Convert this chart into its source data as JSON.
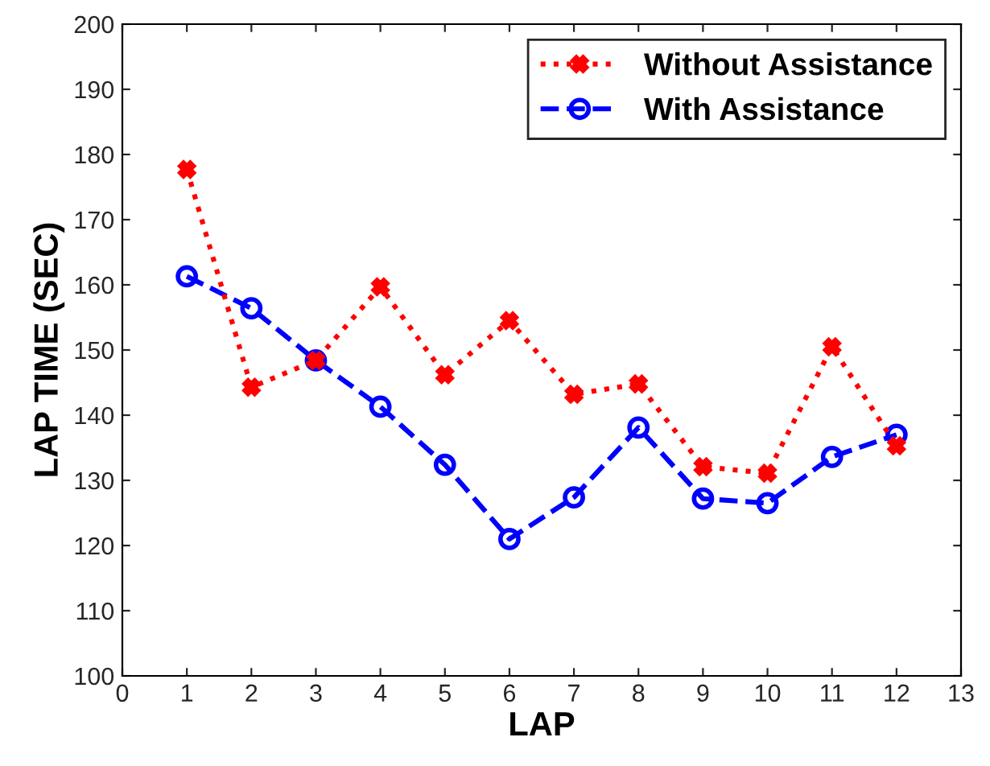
{
  "chart_data": {
    "type": "line",
    "xlabel": "LAP",
    "ylabel": "LAP TIME (SEC)",
    "x": [
      1,
      2,
      3,
      4,
      5,
      6,
      7,
      8,
      9,
      10,
      11,
      12
    ],
    "series": [
      {
        "name": "Without Assistance",
        "color": "#ff0000",
        "marker": "cross",
        "line_style": "dotted",
        "values": [
          177.7,
          144.3,
          148.4,
          159.7,
          146.2,
          154.5,
          143.2,
          144.8,
          132.1,
          131.1,
          150.5,
          135.3
        ]
      },
      {
        "name": "With Assistance",
        "color": "#0000ff",
        "marker": "circle",
        "line_style": "dashed",
        "values": [
          161.3,
          156.4,
          148.4,
          141.3,
          132.4,
          121.0,
          127.4,
          138.1,
          127.2,
          126.5,
          133.6,
          137.0
        ]
      }
    ],
    "xlim": [
      0,
      13
    ],
    "xticks": [
      0,
      1,
      2,
      3,
      4,
      5,
      6,
      7,
      8,
      9,
      10,
      11,
      12,
      13
    ],
    "ylim": [
      100,
      200
    ],
    "yticks": [
      100,
      110,
      120,
      130,
      140,
      150,
      160,
      170,
      180,
      190,
      200
    ],
    "grid": false,
    "legend": "top right"
  }
}
